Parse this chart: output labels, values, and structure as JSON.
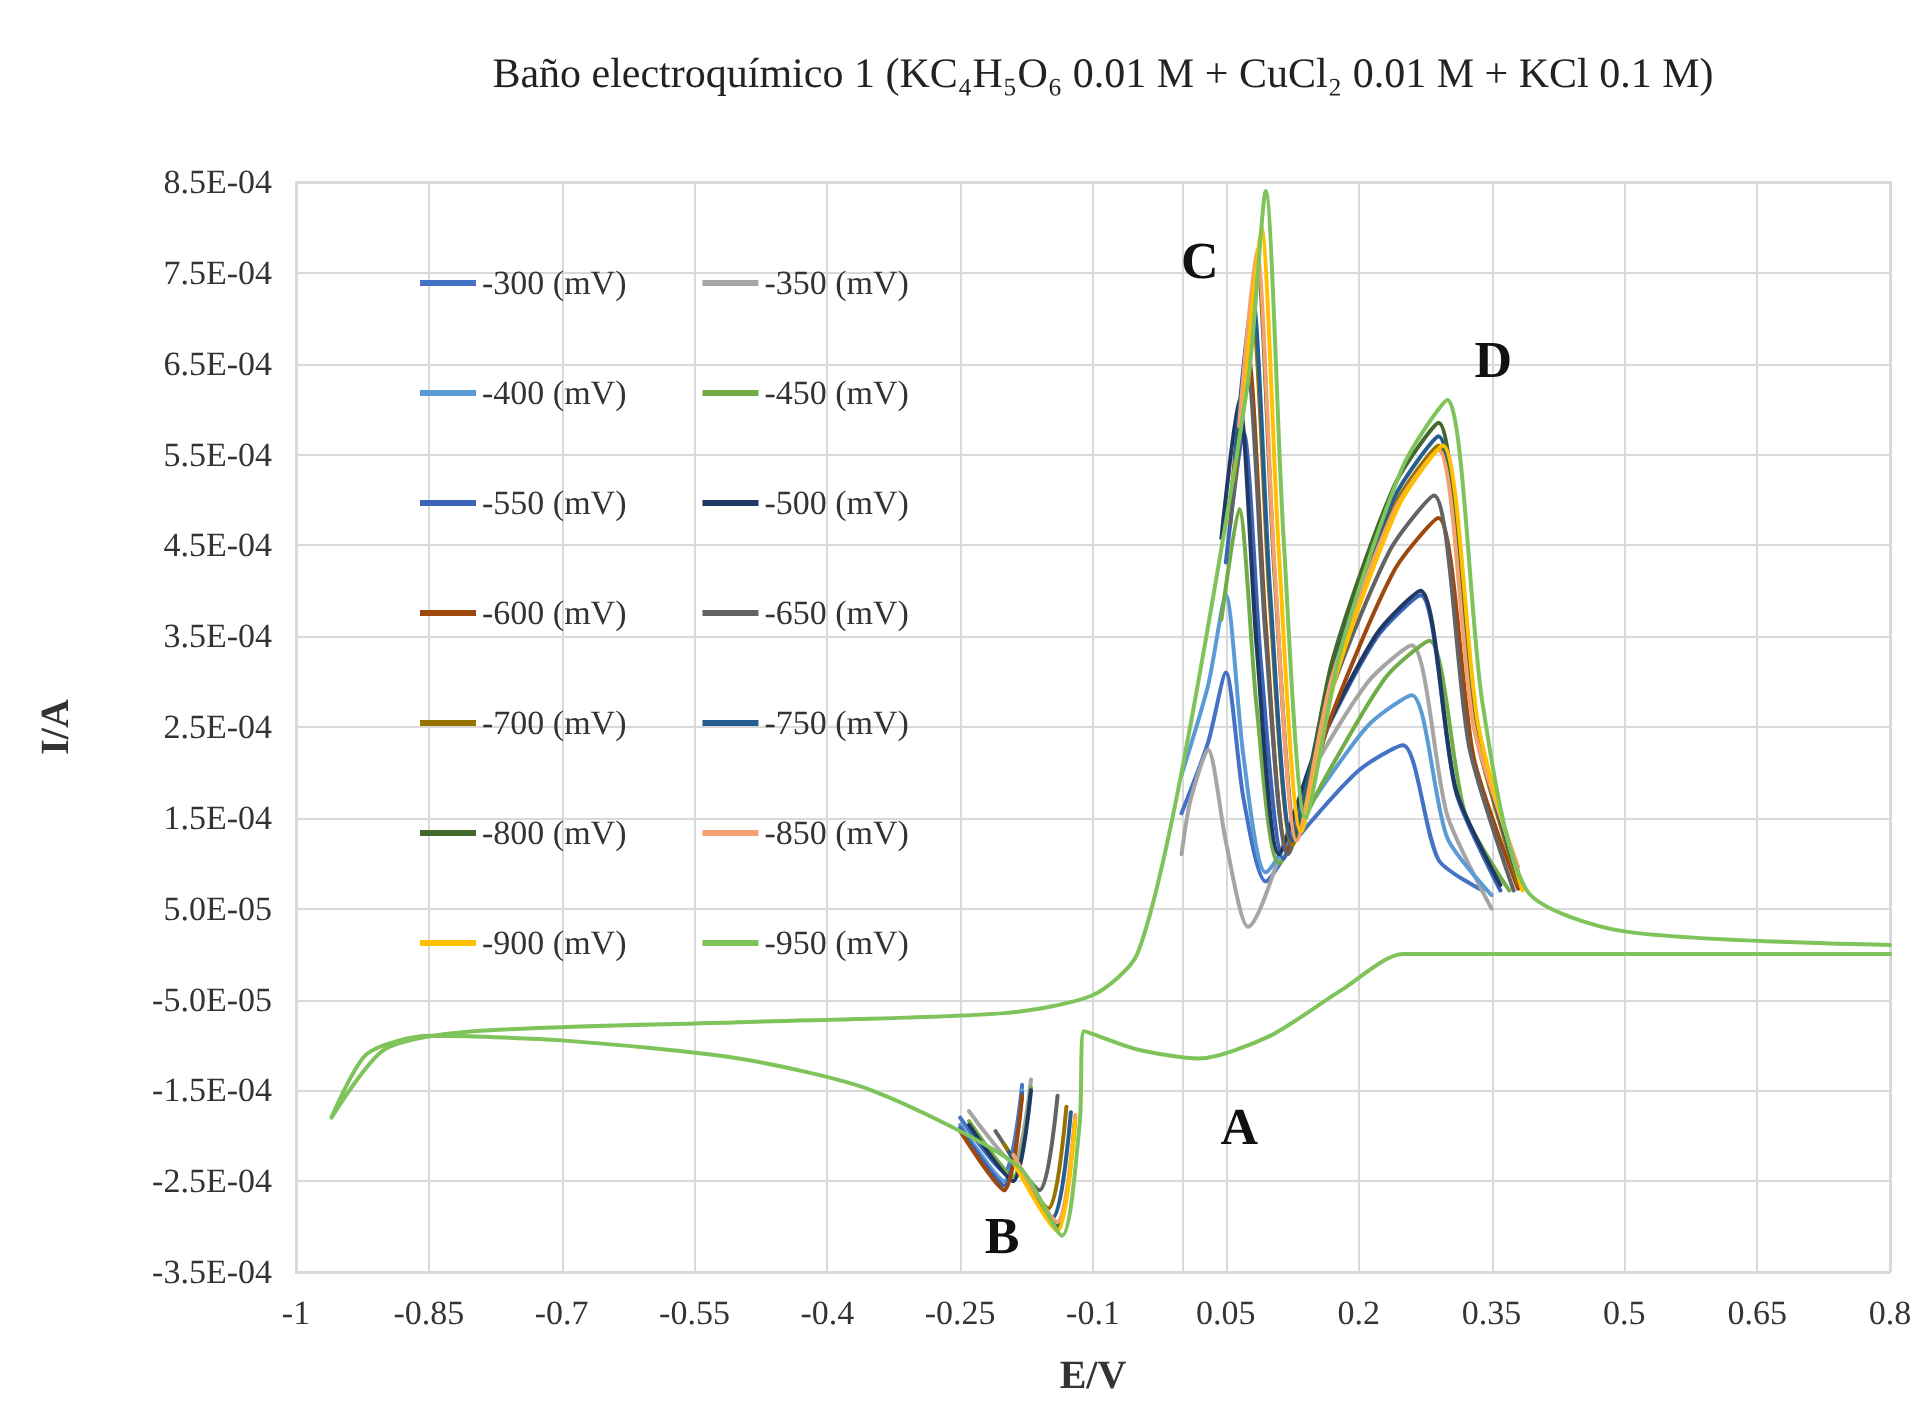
{
  "chart_data": {
    "type": "line",
    "title": "Baño electroquímico 1 (KC₄H₅O₆ 0.01 M + CuCl₂ 0.01 M + KCl 0.1 M)",
    "xlabel": "E/V",
    "ylabel": "I/A",
    "xlim": [
      -1,
      0.8
    ],
    "xticks": [
      -1,
      -0.85,
      -0.7,
      -0.55,
      -0.4,
      -0.25,
      -0.1,
      0.05,
      0.2,
      0.35,
      0.5,
      0.65,
      0.8
    ],
    "ylim": [
      -0.00035,
      0.00085
    ],
    "yticks": [
      {
        "value": -0.00035,
        "label": "-3.5E-04"
      },
      {
        "value": -0.00025,
        "label": "-2.5E-04"
      },
      {
        "value": -0.00015,
        "label": "-1.5E-04"
      },
      {
        "value": -5e-05,
        "label": "-5.0E-05"
      },
      {
        "value": 5e-05,
        "label": "5.0E-05"
      },
      {
        "value": 0.00015,
        "label": "1.5E-04"
      },
      {
        "value": 0.00025,
        "label": "2.5E-04"
      },
      {
        "value": 0.00035,
        "label": "3.5E-04"
      },
      {
        "value": 0.00045,
        "label": "4.5E-04"
      },
      {
        "value": 0.00055,
        "label": "5.5E-04"
      },
      {
        "value": 0.00065,
        "label": "6.5E-04"
      },
      {
        "value": 0.00075,
        "label": "7.5E-04"
      },
      {
        "value": 0.00085,
        "label": "8.5E-04"
      }
    ],
    "grid": true,
    "legend": "top left",
    "marker": "none",
    "line_style": "solid",
    "annotations": [
      {
        "text": "A",
        "x": 0.02,
        "y": -0.000115
      },
      {
        "text": "B",
        "x": -0.135,
        "y": -0.00031
      },
      {
        "text": "C",
        "x": 0.095,
        "y": 0.00084
      },
      {
        "text": "D",
        "x": 0.3,
        "y": 0.00061
      }
    ],
    "series": [
      {
        "name": "-300 (mV)",
        "color": "#4472c4",
        "x": [
          -0.18,
          -0.2,
          -0.25,
          null,
          0,
          0.03,
          0.05,
          0.07,
          0.095,
          0.13,
          0.2,
          0.25,
          0.29,
          0.34
        ],
        "values": [
          -0.000144,
          -0.00024,
          -0.00018,
          null,
          0.000155,
          0.000233,
          0.00031,
          0.000171,
          8e-05,
          0.000127,
          0.000202,
          0.00023,
          0.000104,
          7e-05
        ]
      },
      {
        "name": "-350 (mV)",
        "color": "#a5a5a5",
        "x": [
          -0.17,
          -0.19,
          -0.24,
          null,
          0,
          0.01,
          0.03,
          0.05,
          0.075,
          0.14,
          0.21,
          0.26,
          0.3,
          0.35
        ],
        "values": [
          -0.000138,
          -0.00023,
          -0.000173,
          null,
          0.00011,
          0.000169,
          0.000225,
          0.000124,
          3e-05,
          0.000187,
          0.000299,
          0.00034,
          0.000153,
          5e-05
        ]
      },
      {
        "name": "-400 (mV)",
        "color": "#5b9bd5",
        "x": [
          -0.18,
          -0.2,
          -0.25,
          null,
          0,
          0.03,
          0.05,
          0.07,
          0.095,
          0.14,
          0.21,
          0.26,
          0.3,
          0.35
        ],
        "values": [
          -0.00015,
          -0.00025,
          -0.000188,
          null,
          0.000197,
          0.000296,
          0.000395,
          0.000217,
          9e-05,
          0.000157,
          0.000251,
          0.000285,
          0.000128,
          6.5e-05
        ]
      },
      {
        "name": "-450 (mV)",
        "color": "#70ad47",
        "x": [
          -0.17,
          -0.19,
          -0.24,
          null,
          0.045,
          0.065,
          0.085,
          0.11,
          0.16,
          0.23,
          0.28,
          0.32,
          0.37
        ],
        "values": [
          -0.000147,
          -0.000245,
          -0.000184,
          null,
          0.000368,
          0.00049,
          0.00027,
          0.0001,
          0.00019,
          0.000304,
          0.000345,
          0.000155,
          7e-05
        ]
      },
      {
        "name": "-550 (mV)",
        "color": "#3a64b5",
        "x": [
          -0.18,
          -0.2,
          -0.25,
          null,
          0.05,
          0.07,
          0.09,
          0.115,
          0.15,
          0.22,
          0.27,
          0.31,
          0.36
        ],
        "values": [
          -0.000153,
          -0.000255,
          -0.000191,
          null,
          0.000431,
          0.000575,
          0.000316,
          0.000105,
          0.000217,
          0.000348,
          0.000395,
          0.000178,
          7e-05
        ]
      },
      {
        "name": "-500 (mV)",
        "color": "#203864",
        "x": [
          -0.17,
          -0.19,
          -0.24,
          null,
          0.045,
          0.065,
          0.085,
          0.11,
          0.15,
          0.22,
          0.27,
          0.31,
          0.36
        ],
        "values": [
          -0.00015,
          -0.00025,
          -0.000188,
          null,
          0.000458,
          0.00061,
          0.000336,
          0.00011,
          0.00022,
          0.000352,
          0.0004,
          0.00018,
          7.6e-05
        ]
      },
      {
        "name": "-600 (mV)",
        "color": "#9e480e",
        "x": [
          -0.18,
          -0.2,
          -0.25,
          null,
          0.055,
          0.075,
          0.095,
          0.12,
          0.17,
          0.24,
          0.29,
          0.33,
          0.38
        ],
        "values": [
          -0.000156,
          -0.00026,
          -0.000195,
          null,
          0.000495,
          0.00066,
          0.000363,
          0.000115,
          0.000264,
          0.000422,
          0.00048,
          0.000216,
          7.2e-05
        ]
      },
      {
        "name": "-650 (mV)",
        "color": "#636363",
        "x": [
          -0.14,
          -0.16,
          -0.21,
          null,
          0.055,
          0.075,
          0.095,
          0.12,
          0.165,
          0.235,
          0.285,
          0.325,
          0.375
        ],
        "values": [
          -0.000156,
          -0.00026,
          -0.000195,
          null,
          0.000473,
          0.00063,
          0.000347,
          0.00011,
          0.000278,
          0.000444,
          0.000505,
          0.000227,
          7e-05
        ]
      },
      {
        "name": "-700 (mV)",
        "color": "#997300",
        "x": [
          -0.13,
          -0.15,
          -0.2,
          null,
          0.06,
          0.08,
          0.1,
          0.125,
          0.17,
          0.24,
          0.29,
          0.33,
          0.38
        ],
        "values": [
          -0.000168,
          -0.00028,
          -0.00021,
          null,
          0.000521,
          0.000695,
          0.000382,
          0.00012,
          0.000308,
          0.000493,
          0.00056,
          0.000252,
          7.8e-05
        ]
      },
      {
        "name": "-750 (mV)",
        "color": "#255e91",
        "x": [
          -0.125,
          -0.145,
          -0.195,
          null,
          0.06,
          0.08,
          0.1,
          0.125,
          0.17,
          0.24,
          0.29,
          0.33,
          0.38
        ],
        "values": [
          -0.000174,
          -0.00029,
          -0.000218,
          null,
          0.000544,
          0.000725,
          0.000399,
          0.000125,
          0.000314,
          0.000502,
          0.00057,
          0.000257,
          8.4e-05
        ]
      },
      {
        "name": "-800 (mV)",
        "color": "#43682b",
        "x": [
          -0.12,
          -0.14,
          -0.19,
          null,
          0.065,
          0.085,
          0.105,
          0.13,
          0.17,
          0.24,
          0.29,
          0.33,
          0.38
        ],
        "values": [
          -0.00018,
          -0.0003,
          -0.000225,
          null,
          0.00057,
          0.00076,
          0.000418,
          0.00013,
          0.000322,
          0.000515,
          0.000585,
          0.000263,
          9e-05
        ]
      },
      {
        "name": "-850 (mV)",
        "color": "#f4a070",
        "x": [
          -0.12,
          -0.14,
          -0.19,
          null,
          0.065,
          0.085,
          0.105,
          0.13,
          0.17,
          0.24,
          0.29,
          0.33,
          0.38
        ],
        "values": [
          -0.000177,
          -0.000295,
          -0.000221,
          null,
          0.000581,
          0.000775,
          0.000426,
          0.000125,
          0.000305,
          0.000488,
          0.000555,
          0.00025,
          9.6e-05
        ]
      },
      {
        "name": "-900 (mV)",
        "color": "#ffc000",
        "x": [
          -0.12,
          -0.14,
          -0.19,
          null,
          0.07,
          0.09,
          0.11,
          0.135,
          0.175,
          0.245,
          0.295,
          0.335,
          0.385
        ],
        "values": [
          -0.000183,
          -0.000305,
          -0.000229,
          null,
          0.0006,
          0.0008,
          0.00044,
          0.000135,
          0.000308,
          0.000493,
          0.00056,
          0.000252,
          7e-05
        ]
      },
      {
        "name": "-950 (mV)",
        "color": "#7fc35b",
        "x": [
          0.8,
          0.5,
          0.25,
          0.18,
          0.1,
          0.02,
          -0.05,
          -0.11,
          -0.115,
          -0.135,
          -0.185,
          -0.35,
          -0.5,
          -0.7,
          -0.85,
          -0.92,
          -0.96,
          -0.9,
          -0.8,
          -0.5,
          -0.2,
          -0.1,
          -0.05,
          0,
          0.075,
          0.095,
          0.115,
          0.14,
          0.18,
          0.25,
          0.3,
          0.34,
          0.39,
          0.5,
          0.8
        ],
        "values": [
          0,
          0,
          0,
          -4e-05,
          -9e-05,
          -0.000115,
          -0.000105,
          -8.5e-05,
          -0.000186,
          -0.00031,
          -0.000233,
          -0.00015,
          -0.000115,
          -9.5e-05,
          -9e-05,
          -0.00011,
          -0.00018,
          -0.000105,
          -8.5e-05,
          -7.5e-05,
          -6.5e-05,
          -4.5e-05,
          0,
          0.0002,
          0.00063,
          0.00084,
          0.000462,
          0.00015,
          0.000336,
          0.000537,
          0.00061,
          0.000275,
          7e-05,
          2.5e-05,
          1e-05
        ]
      }
    ]
  }
}
